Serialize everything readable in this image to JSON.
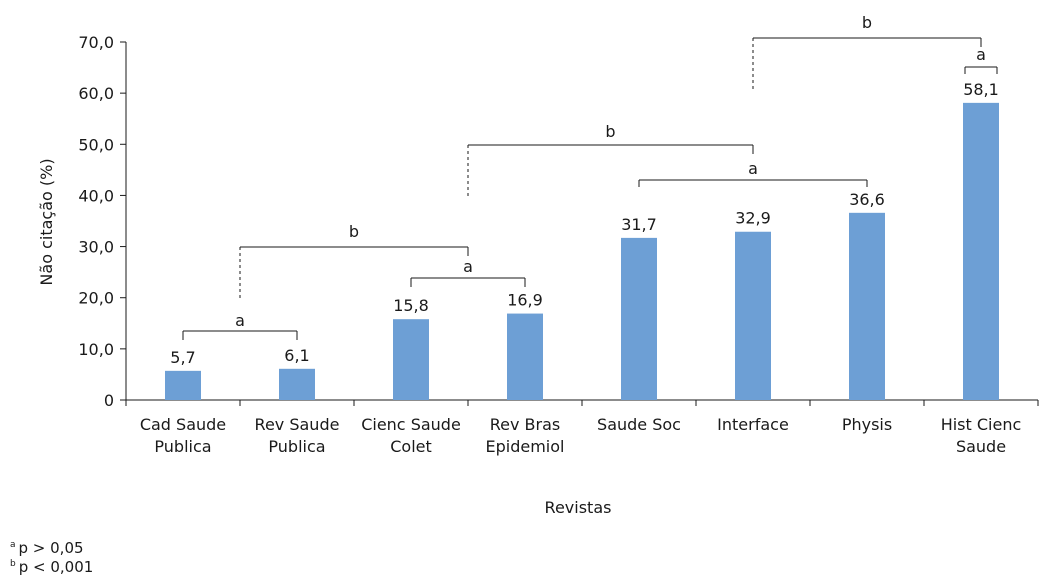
{
  "chart_data": {
    "type": "bar",
    "xlabel": "Revistas",
    "ylabel": "Não citação (%)",
    "ylim": [
      0,
      70
    ],
    "yticks": [
      "0",
      "10,0",
      "20,0",
      "30,0",
      "40,0",
      "50,0",
      "60,0",
      "70,0"
    ],
    "categories": [
      [
        "Cad Saude",
        "Publica"
      ],
      [
        "Rev Saude",
        "Publica"
      ],
      [
        "Cienc Saude",
        "Colet"
      ],
      [
        "Rev Bras",
        "Epidemiol"
      ],
      [
        "Saude Soc"
      ],
      [
        "Interface"
      ],
      [
        "Physis"
      ],
      [
        "Hist Cienc",
        "Saude"
      ]
    ],
    "values": [
      5.7,
      6.1,
      15.8,
      16.9,
      31.7,
      32.9,
      36.6,
      58.1
    ],
    "value_labels": [
      "5,7",
      "6,1",
      "15,8",
      "16,9",
      "31,7",
      "32,9",
      "36,6",
      "58,1"
    ],
    "bar_color": "#6d9fd5",
    "grid": false,
    "significance_brackets": [
      {
        "from": 0,
        "to": 1,
        "label": "a"
      },
      {
        "from": 2,
        "to": 3,
        "label": "a"
      },
      {
        "from": 1,
        "to": 3,
        "label": "b"
      },
      {
        "from": 4,
        "to": 6,
        "label": "a"
      },
      {
        "from": 3,
        "to": 5,
        "label": "b"
      },
      {
        "from": 7,
        "to": 7,
        "label": "a"
      },
      {
        "from": 5,
        "to": 7,
        "label": "b"
      }
    ]
  },
  "footnotes": [
    {
      "marker": "a",
      "text": "p > 0,05"
    },
    {
      "marker": "b",
      "text": "p < 0,001"
    }
  ]
}
